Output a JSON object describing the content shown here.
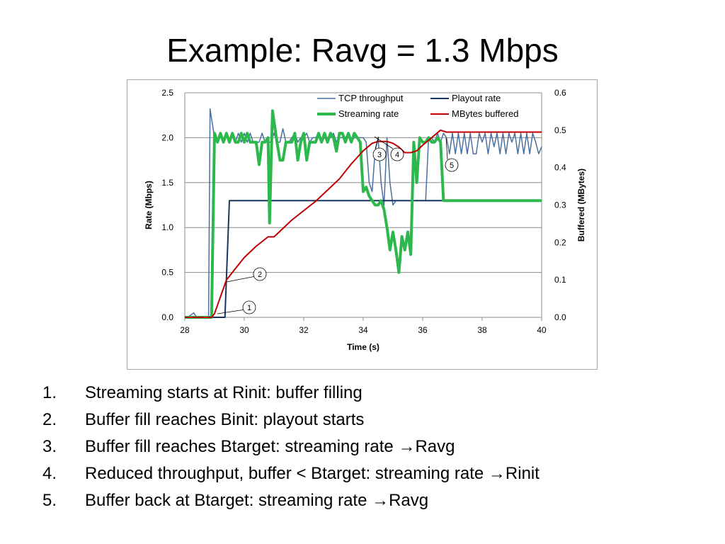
{
  "slide": {
    "title": "Example: Ravg = 1.3 Mbps"
  },
  "chart_data": {
    "type": "line",
    "title": "",
    "xlabel": "Time (s)",
    "ylabel": "Rate (Mbps)",
    "y2label": "Buffered (MBytes)",
    "xlim": [
      28,
      40
    ],
    "ylim": [
      0,
      2.5
    ],
    "y2lim": [
      0,
      0.6
    ],
    "x_ticks": [
      "28",
      "30",
      "32",
      "34",
      "36",
      "38",
      "40"
    ],
    "y_ticks": [
      "0.0",
      "0.5",
      "1.0",
      "1.5",
      "2.0",
      "2.5"
    ],
    "y2_ticks": [
      "0.0",
      "0.1",
      "0.2",
      "0.3",
      "0.4",
      "0.5",
      "0.6"
    ],
    "grid": true,
    "legend_position": "top-right",
    "series": [
      {
        "name": "TCP throughput",
        "axis": "left",
        "color": "#4a6fa0",
        "width": 1.5,
        "x": [
          28,
          28.1,
          28.3,
          28.4,
          28.5,
          28.7,
          28.8,
          28.85,
          29.0,
          29.1,
          29.2,
          29.3,
          29.4,
          29.5,
          29.6,
          29.7,
          29.8,
          29.9,
          30.0,
          30.1,
          30.2,
          30.3,
          30.4,
          30.5,
          30.6,
          30.7,
          30.8,
          30.9,
          31.0,
          31.1,
          31.2,
          31.3,
          31.4,
          31.5,
          31.6,
          31.7,
          31.8,
          31.9,
          32.0,
          32.1,
          32.2,
          32.3,
          32.4,
          32.5,
          32.6,
          32.7,
          32.8,
          32.9,
          33.0,
          33.1,
          33.2,
          33.3,
          33.4,
          33.5,
          33.6,
          33.7,
          33.8,
          33.9,
          34.0,
          34.1,
          34.2,
          34.3,
          34.4,
          34.5,
          34.6,
          34.7,
          34.8,
          34.9,
          35.0,
          35.1,
          35.2,
          35.3,
          35.4,
          35.5,
          35.6,
          35.7,
          35.8,
          35.9,
          36.0,
          36.1,
          36.2,
          36.3,
          36.4,
          36.5,
          36.6,
          36.7,
          36.8,
          36.9,
          37.0,
          37.1,
          37.2,
          37.3,
          37.4,
          37.5,
          37.6,
          37.7,
          37.8,
          37.9,
          38.0,
          38.1,
          38.2,
          38.3,
          38.4,
          38.5,
          38.6,
          38.7,
          38.8,
          38.9,
          39.0,
          39.1,
          39.2,
          39.3,
          39.4,
          39.5,
          39.6,
          39.7,
          39.8,
          39.9,
          40.0
        ],
        "y": [
          0.0,
          0.0,
          0.05,
          0.0,
          0.0,
          0.0,
          0.0,
          2.32,
          2.0,
          1.95,
          2.05,
          1.95,
          2.05,
          1.95,
          2.05,
          1.95,
          2.05,
          1.95,
          2.05,
          1.95,
          2.05,
          1.95,
          1.95,
          1.95,
          2.05,
          1.95,
          1.95,
          1.95,
          2.05,
          1.95,
          1.95,
          2.1,
          1.95,
          1.95,
          2.0,
          2.05,
          1.95,
          2.0,
          2.0,
          2.05,
          1.95,
          2.0,
          2.0,
          2.05,
          1.95,
          2.0,
          2.0,
          2.0,
          2.05,
          1.95,
          2.0,
          2.0,
          2.0,
          2.05,
          1.95,
          2.0,
          2.0,
          2.0,
          2.0,
          1.95,
          1.5,
          1.4,
          1.85,
          2.0,
          1.5,
          1.25,
          2.0,
          1.5,
          1.25,
          1.3,
          1.3,
          1.3,
          1.3,
          1.3,
          1.3,
          1.3,
          1.3,
          1.3,
          1.3,
          1.3,
          2.0,
          2.0,
          1.95,
          2.05,
          1.95,
          2.05,
          2.0,
          1.82,
          2.05,
          1.82,
          2.05,
          1.82,
          2.05,
          1.82,
          2.05,
          1.82,
          1.82,
          2.05,
          1.95,
          2.05,
          1.82,
          2.05,
          1.9,
          2.05,
          1.82,
          2.05,
          1.82,
          2.05,
          1.95,
          2.05,
          1.82,
          2.05,
          1.82,
          2.05,
          1.82,
          2.05,
          1.95,
          1.82,
          1.9
        ]
      },
      {
        "name": "Playout rate",
        "axis": "left",
        "color": "#17365d",
        "width": 2,
        "x": [
          28,
          29.35,
          29.5,
          40
        ],
        "y": [
          0.0,
          0.0,
          1.3,
          1.3
        ]
      },
      {
        "name": "Streaming rate",
        "axis": "left",
        "color": "#2db84d",
        "width": 4,
        "x": [
          28,
          28.9,
          29.0,
          29.1,
          29.2,
          29.3,
          29.4,
          29.5,
          29.6,
          29.7,
          29.8,
          29.9,
          30.0,
          30.1,
          30.2,
          30.3,
          30.4,
          30.5,
          30.6,
          30.7,
          30.8,
          30.85,
          30.95,
          31.1,
          31.2,
          31.3,
          31.4,
          31.5,
          31.6,
          31.7,
          31.8,
          31.9,
          32.0,
          32.1,
          32.2,
          32.3,
          32.4,
          32.5,
          32.6,
          32.7,
          32.8,
          32.9,
          33.0,
          33.1,
          33.2,
          33.3,
          33.4,
          33.5,
          33.6,
          33.7,
          33.8,
          33.9,
          34.0,
          34.1,
          34.2,
          34.3,
          34.4,
          34.5,
          34.6,
          34.7,
          34.8,
          34.9,
          35.0,
          35.1,
          35.2,
          35.3,
          35.4,
          35.5,
          35.6,
          35.7,
          35.8,
          35.9,
          36.0,
          36.1,
          36.2,
          36.3,
          36.4,
          36.5,
          36.6,
          36.7,
          36.8,
          40
        ],
        "y": [
          0.0,
          0.0,
          2.05,
          1.95,
          2.05,
          1.95,
          2.05,
          1.95,
          2.05,
          1.95,
          1.95,
          2.05,
          1.95,
          2.05,
          1.95,
          1.95,
          1.95,
          1.7,
          1.95,
          1.95,
          2.0,
          1.05,
          2.3,
          1.95,
          1.75,
          1.75,
          1.95,
          1.95,
          1.95,
          2.05,
          1.75,
          1.95,
          2.05,
          1.75,
          1.95,
          1.95,
          1.95,
          2.05,
          1.95,
          2.05,
          1.95,
          2.05,
          2.0,
          1.85,
          2.05,
          2.05,
          1.95,
          2.05,
          1.95,
          2.05,
          2.0,
          1.95,
          1.4,
          1.45,
          1.35,
          1.3,
          1.25,
          1.25,
          1.3,
          1.2,
          1.0,
          0.75,
          0.95,
          0.75,
          0.5,
          0.9,
          0.75,
          0.95,
          0.7,
          1.95,
          1.5,
          2.0,
          1.95,
          1.95,
          2.0,
          1.95,
          1.95,
          2.0,
          1.95,
          1.3,
          1.3,
          1.3
        ],
        "y_note": ""
      },
      {
        "name": "MBytes buffered",
        "axis": "right",
        "color": "#c00000",
        "width": 2,
        "x": [
          28,
          28.9,
          29.0,
          29.4,
          29.6,
          30.0,
          30.4,
          30.8,
          31.0,
          31.2,
          31.6,
          32.0,
          32.4,
          32.8,
          33.2,
          33.6,
          34.0,
          34.3,
          34.5,
          34.8,
          35.0,
          35.2,
          35.4,
          35.6,
          35.8,
          36.0,
          36.3,
          36.6,
          36.8,
          40
        ],
        "y": [
          0.0,
          0.0,
          0.01,
          0.1,
          0.12,
          0.16,
          0.19,
          0.215,
          0.215,
          0.23,
          0.26,
          0.285,
          0.31,
          0.34,
          0.37,
          0.41,
          0.445,
          0.465,
          0.47,
          0.47,
          0.465,
          0.455,
          0.44,
          0.44,
          0.445,
          0.46,
          0.48,
          0.5,
          0.495,
          0.495
        ]
      }
    ],
    "annotations": [
      {
        "label": "1",
        "x": 29.25,
        "y": 0.05,
        "axis": "left"
      },
      {
        "label": "2",
        "x": 29.5,
        "y": 0.5,
        "axis": "left"
      },
      {
        "label": "3",
        "x": 34.5,
        "y": 1.95,
        "axis": "left"
      },
      {
        "label": "4",
        "x": 35.0,
        "y": 1.95,
        "axis": "left"
      },
      {
        "label": "5",
        "x": 36.9,
        "y": 2.0,
        "axis": "left"
      }
    ]
  },
  "bullets": [
    {
      "num": "1.",
      "text": "Streaming starts at Rinit: buffer filling",
      "arrow": "",
      "tail": ""
    },
    {
      "num": "2.",
      "text": "Buffer fill reaches Binit: playout starts",
      "arrow": "",
      "tail": ""
    },
    {
      "num": "3.",
      "text": "Buffer fill reaches Btarget: streaming rate ",
      "arrow": "→",
      "tail": "Ravg"
    },
    {
      "num": "4.",
      "text": "Reduced throughput, buffer < Btarget: streaming rate ",
      "arrow": "→",
      "tail": "Rinit"
    },
    {
      "num": "5.",
      "text": "Buffer back at Btarget: streaming rate ",
      "arrow": "→",
      "tail": "Ravg"
    }
  ]
}
